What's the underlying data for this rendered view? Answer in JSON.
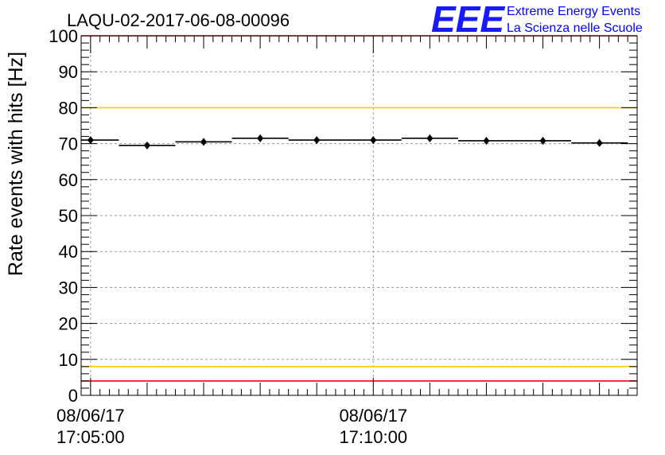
{
  "title": "LAQU-02-2017-06-08-00096",
  "logo": {
    "letters": "EEE",
    "line1": "Extreme Energy Events",
    "line2": "La Scienza nelle Scuole",
    "color": "#0000ff"
  },
  "chart_data": {
    "type": "scatter",
    "title": "LAQU-02-2017-06-08-00096",
    "xlabel": "",
    "ylabel": "Rate events with hits [Hz]",
    "ylim": [
      0,
      100
    ],
    "yticks": [
      0,
      10,
      20,
      30,
      40,
      50,
      60,
      70,
      80,
      90,
      100
    ],
    "xlim": [
      "08/06/17 17:04:50",
      "08/06/17 17:14:40"
    ],
    "xtick_labels": [
      {
        "x": "08/06/17 17:05:00",
        "date": "08/06/17",
        "time": "17:05:00"
      },
      {
        "x": "08/06/17 17:10:00",
        "date": "08/06/17",
        "time": "17:10:00"
      }
    ],
    "grid": true,
    "series": [
      {
        "marker": "filled-diamond-with-horizontal-error-bar",
        "color": "#000000",
        "points": [
          {
            "x": "17:05:00",
            "y": 71.0
          },
          {
            "x": "17:06:00",
            "y": 69.5
          },
          {
            "x": "17:07:00",
            "y": 70.5
          },
          {
            "x": "17:08:00",
            "y": 71.5
          },
          {
            "x": "17:09:00",
            "y": 71.0
          },
          {
            "x": "17:10:00",
            "y": 71.0
          },
          {
            "x": "17:11:00",
            "y": 71.5
          },
          {
            "x": "17:12:00",
            "y": 70.8
          },
          {
            "x": "17:13:00",
            "y": 70.8
          },
          {
            "x": "17:14:00",
            "y": 70.2
          }
        ],
        "half_width_seconds": 30
      }
    ],
    "reference_lines": [
      {
        "y": 100,
        "color": "#ff0000"
      },
      {
        "y": 80,
        "color": "#ffcc00"
      },
      {
        "y": 8,
        "color": "#ffcc00"
      },
      {
        "y": 4,
        "color": "#ff0000"
      }
    ]
  }
}
